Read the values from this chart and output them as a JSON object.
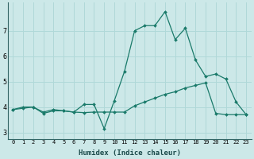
{
  "xlabel": "Humidex (Indice chaleur)",
  "x": [
    0,
    1,
    2,
    3,
    4,
    5,
    6,
    7,
    8,
    9,
    10,
    11,
    12,
    13,
    14,
    15,
    16,
    17,
    18,
    19,
    20,
    21,
    22,
    23
  ],
  "line1": [
    3.9,
    4.0,
    4.0,
    3.8,
    3.9,
    3.85,
    3.8,
    4.1,
    4.1,
    3.15,
    4.25,
    5.4,
    7.0,
    7.2,
    7.2,
    7.75,
    6.65,
    7.1,
    5.85,
    5.2,
    5.3,
    5.1,
    4.2,
    3.7
  ],
  "line2": [
    3.9,
    3.95,
    4.0,
    3.75,
    3.85,
    3.85,
    3.8,
    3.78,
    3.8,
    3.8,
    3.8,
    3.8,
    4.05,
    4.2,
    4.35,
    4.5,
    4.6,
    4.75,
    4.85,
    4.95,
    3.75,
    3.7,
    3.7,
    3.7
  ],
  "line_color": "#1a7a6a",
  "bg_color": "#cce8e8",
  "grid_color": "#b0d8d8",
  "ylim": [
    2.75,
    8.1
  ],
  "yticks": [
    3,
    4,
    5,
    6,
    7
  ],
  "xlim": [
    -0.5,
    23.5
  ]
}
